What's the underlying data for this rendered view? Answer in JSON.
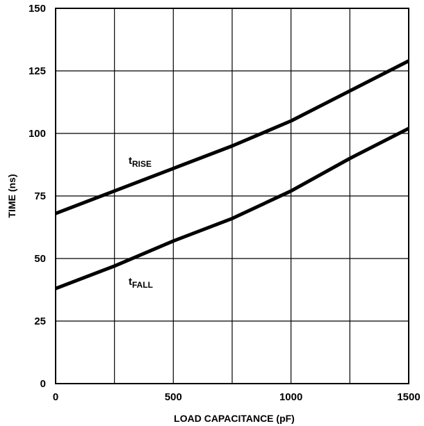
{
  "chart_data": {
    "type": "line",
    "title": "",
    "xlabel": "LOAD CAPACITANCE (pF)",
    "ylabel": "TIME (ns)",
    "xlim": [
      0,
      1500
    ],
    "ylim": [
      0,
      150
    ],
    "xticks": [
      0,
      500,
      1000,
      1500
    ],
    "yticks": [
      0,
      25,
      50,
      75,
      100,
      125,
      150
    ],
    "grid": true,
    "x_grid_step": 250,
    "y_grid_step": 25,
    "series": [
      {
        "name_main": "t",
        "name_sub": "RISE",
        "x": [
          0,
          250,
          500,
          750,
          1000,
          1250,
          1500
        ],
        "y": [
          68,
          77,
          86,
          95,
          105,
          117,
          129
        ]
      },
      {
        "name_main": "t",
        "name_sub": "FALL",
        "x": [
          0,
          250,
          500,
          750,
          1000,
          1250,
          1500
        ],
        "y": [
          38,
          47,
          57,
          66,
          77,
          90,
          102
        ]
      }
    ],
    "colors": {
      "line": "#000000",
      "grid": "#000000",
      "background": "#ffffff"
    }
  }
}
